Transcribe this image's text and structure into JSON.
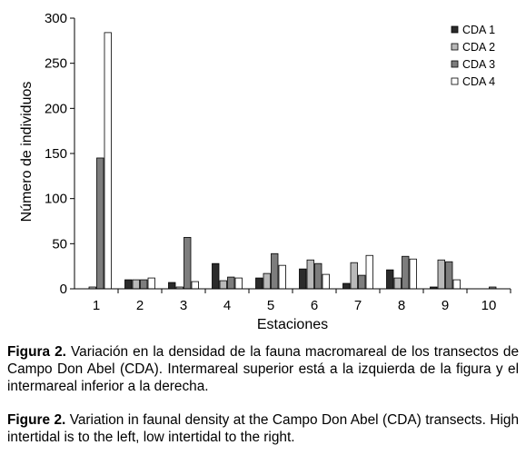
{
  "chart_data": {
    "type": "bar",
    "categories": [
      "1",
      "2",
      "3",
      "4",
      "5",
      "6",
      "7",
      "8",
      "9",
      "10"
    ],
    "series": [
      {
        "name": "CDA 1",
        "color": "#2b2b2b",
        "values": [
          0,
          10,
          7,
          28,
          12,
          22,
          6,
          21,
          2,
          0
        ]
      },
      {
        "name": "CDA 2",
        "color": "#b9b9b9",
        "values": [
          2,
          10,
          2,
          9,
          17,
          32,
          29,
          12,
          32,
          0
        ]
      },
      {
        "name": "CDA 3",
        "color": "#7d7d7d",
        "values": [
          145,
          10,
          57,
          13,
          39,
          28,
          15,
          36,
          30,
          2
        ]
      },
      {
        "name": "CDA 4",
        "color": "#ffffff",
        "values": [
          284,
          12,
          8,
          12,
          26,
          16,
          37,
          33,
          10,
          0
        ]
      }
    ],
    "title": "",
    "xlabel": "Estaciones",
    "ylabel": "Número de individuos",
    "ylim": [
      0,
      300
    ],
    "yticks": [
      0,
      50,
      100,
      150,
      200,
      250,
      300
    ],
    "grid": false,
    "legend_position": "top-right"
  },
  "caption": {
    "es_label": "Figura 2.",
    "es_text": " Variación en la densidad de la fauna macromareal de los transectos de Campo Don Abel (CDA). Intermareal superior está a la izquierda de la figura y el intermareal inferior a la derecha.",
    "en_label": "Figure 2.",
    "en_text": " Variation in faunal density at the Campo Don Abel (CDA) transects. High intertidal is to the left, low intertidal to the right."
  }
}
